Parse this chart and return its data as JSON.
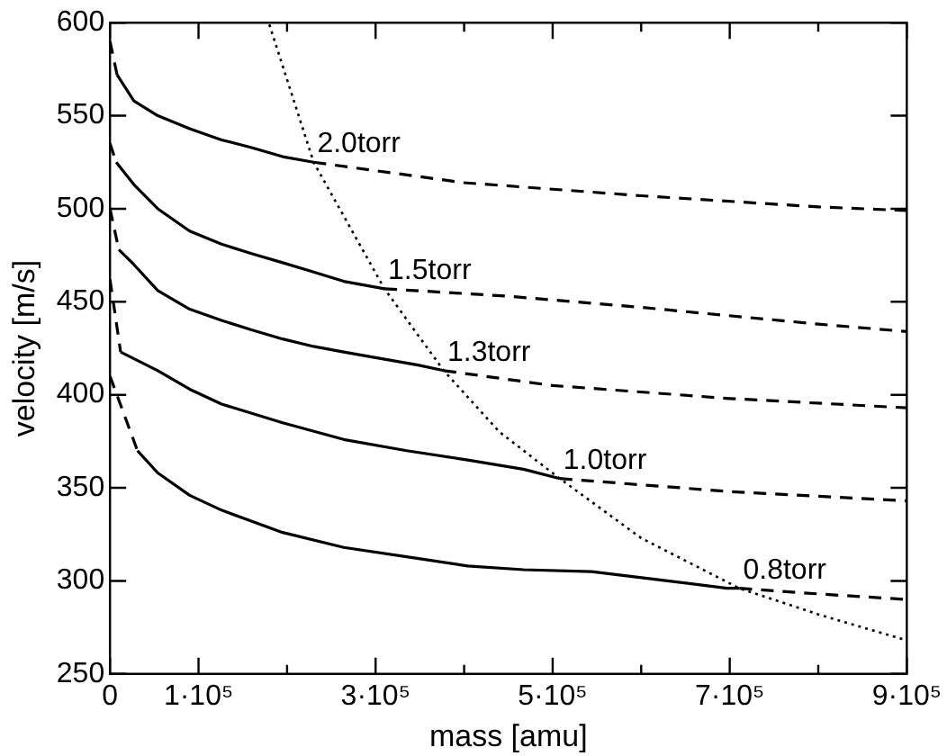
{
  "chart_data": {
    "type": "line",
    "xlabel": "mass [amu]",
    "ylabel": "velocity [m/s]",
    "xlim": [
      0,
      900000
    ],
    "ylim": [
      250,
      600
    ],
    "xticks": [
      0,
      {
        "value": 100000,
        "label": "1·10⁵"
      },
      {
        "value": 200000,
        "label": null
      },
      {
        "value": 300000,
        "label": "3·10⁵"
      },
      {
        "value": 400000,
        "label": null
      },
      {
        "value": 500000,
        "label": "5·10⁵"
      },
      {
        "value": 600000,
        "label": null
      },
      {
        "value": 700000,
        "label": "7·10⁵"
      },
      {
        "value": 800000,
        "label": null
      },
      {
        "value": 900000,
        "label": "9·10⁵"
      }
    ],
    "yticks": [
      250,
      300,
      350,
      400,
      450,
      500,
      550,
      600
    ],
    "grid": false,
    "legend": false,
    "marker": "none",
    "series": [
      {
        "line_style": "solid",
        "color": "#000000",
        "x": [
          8000,
          27000,
          54000,
          90000,
          126000,
          159000,
          195000,
          230000
        ],
        "values": [
          572,
          558,
          550,
          543,
          537,
          533,
          528,
          525
        ]
      },
      {
        "line_style": "dashed",
        "color": "#000000",
        "x": [
          0,
          8000,
          100000,
          230000,
          400000,
          600000,
          800000,
          900000
        ],
        "values": [
          590,
          572,
          null,
          525,
          514,
          507,
          501,
          499
        ]
      },
      {
        "line_style": "solid",
        "color": "#000000",
        "x": [
          7000,
          27000,
          54000,
          90000,
          126000,
          159000,
          195000,
          230000,
          264000,
          310000
        ],
        "values": [
          525,
          513,
          500,
          488,
          481,
          476,
          471,
          466,
          461,
          457
        ]
      },
      {
        "line_style": "dashed",
        "color": "#000000",
        "x": [
          0,
          7000,
          100000,
          310000,
          450000,
          600000,
          800000,
          900000
        ],
        "values": [
          535,
          525,
          null,
          457,
          453,
          447,
          438,
          434
        ]
      },
      {
        "line_style": "solid",
        "color": "#000000",
        "x": [
          10000,
          27000,
          54000,
          90000,
          126000,
          159000,
          195000,
          230000,
          264000,
          300000,
          348000,
          377000
        ],
        "values": [
          478,
          470,
          456,
          446,
          440,
          435,
          430,
          426,
          423,
          420,
          416,
          413
        ]
      },
      {
        "line_style": "dashed",
        "color": "#000000",
        "x": [
          0,
          10000,
          100000,
          377000,
          500000,
          700000,
          900000
        ],
        "values": [
          500,
          478,
          null,
          413,
          405,
          398,
          393
        ]
      },
      {
        "line_style": "solid",
        "color": "#000000",
        "x": [
          12000,
          54000,
          90000,
          126000,
          195000,
          264000,
          335000,
          404000,
          467000,
          508000
        ],
        "values": [
          423,
          413,
          403,
          395,
          385,
          376,
          370,
          365,
          360,
          355
        ]
      },
      {
        "line_style": "dashed",
        "color": "#000000",
        "x": [
          0,
          12000,
          100000,
          508000,
          700000,
          900000
        ],
        "values": [
          462,
          423,
          null,
          355,
          348,
          343
        ]
      },
      {
        "line_style": "solid",
        "color": "#000000",
        "x": [
          31000,
          54000,
          90000,
          126000,
          195000,
          264000,
          335000,
          404000,
          467000,
          544000,
          613000,
          697000,
          711000
        ],
        "values": [
          370,
          358,
          346,
          338,
          326,
          318,
          313,
          308,
          306,
          305,
          301,
          296,
          296
        ]
      },
      {
        "line_style": "dashed",
        "color": "#000000",
        "x": [
          0,
          31000,
          100000,
          711000,
          800000,
          900000
        ],
        "values": [
          410,
          370,
          null,
          296,
          293,
          290
        ]
      },
      {
        "line_style": "dotted",
        "color": "#000000",
        "x": [
          180000,
          230000,
          310000,
          377000,
          440000,
          508000,
          600000,
          711000,
          800000,
          900000
        ],
        "values": [
          599,
          525,
          457,
          413,
          380,
          355,
          323,
          296,
          282,
          268
        ]
      }
    ],
    "annotations": [
      {
        "text": "2.0torr",
        "x": 230000,
        "y": 525
      },
      {
        "text": "1.5torr",
        "x": 310000,
        "y": 457
      },
      {
        "text": "1.3torr",
        "x": 377000,
        "y": 413
      },
      {
        "text": "1.0torr",
        "x": 508000,
        "y": 355
      },
      {
        "text": "0.8torr",
        "x": 711000,
        "y": 296
      }
    ]
  }
}
